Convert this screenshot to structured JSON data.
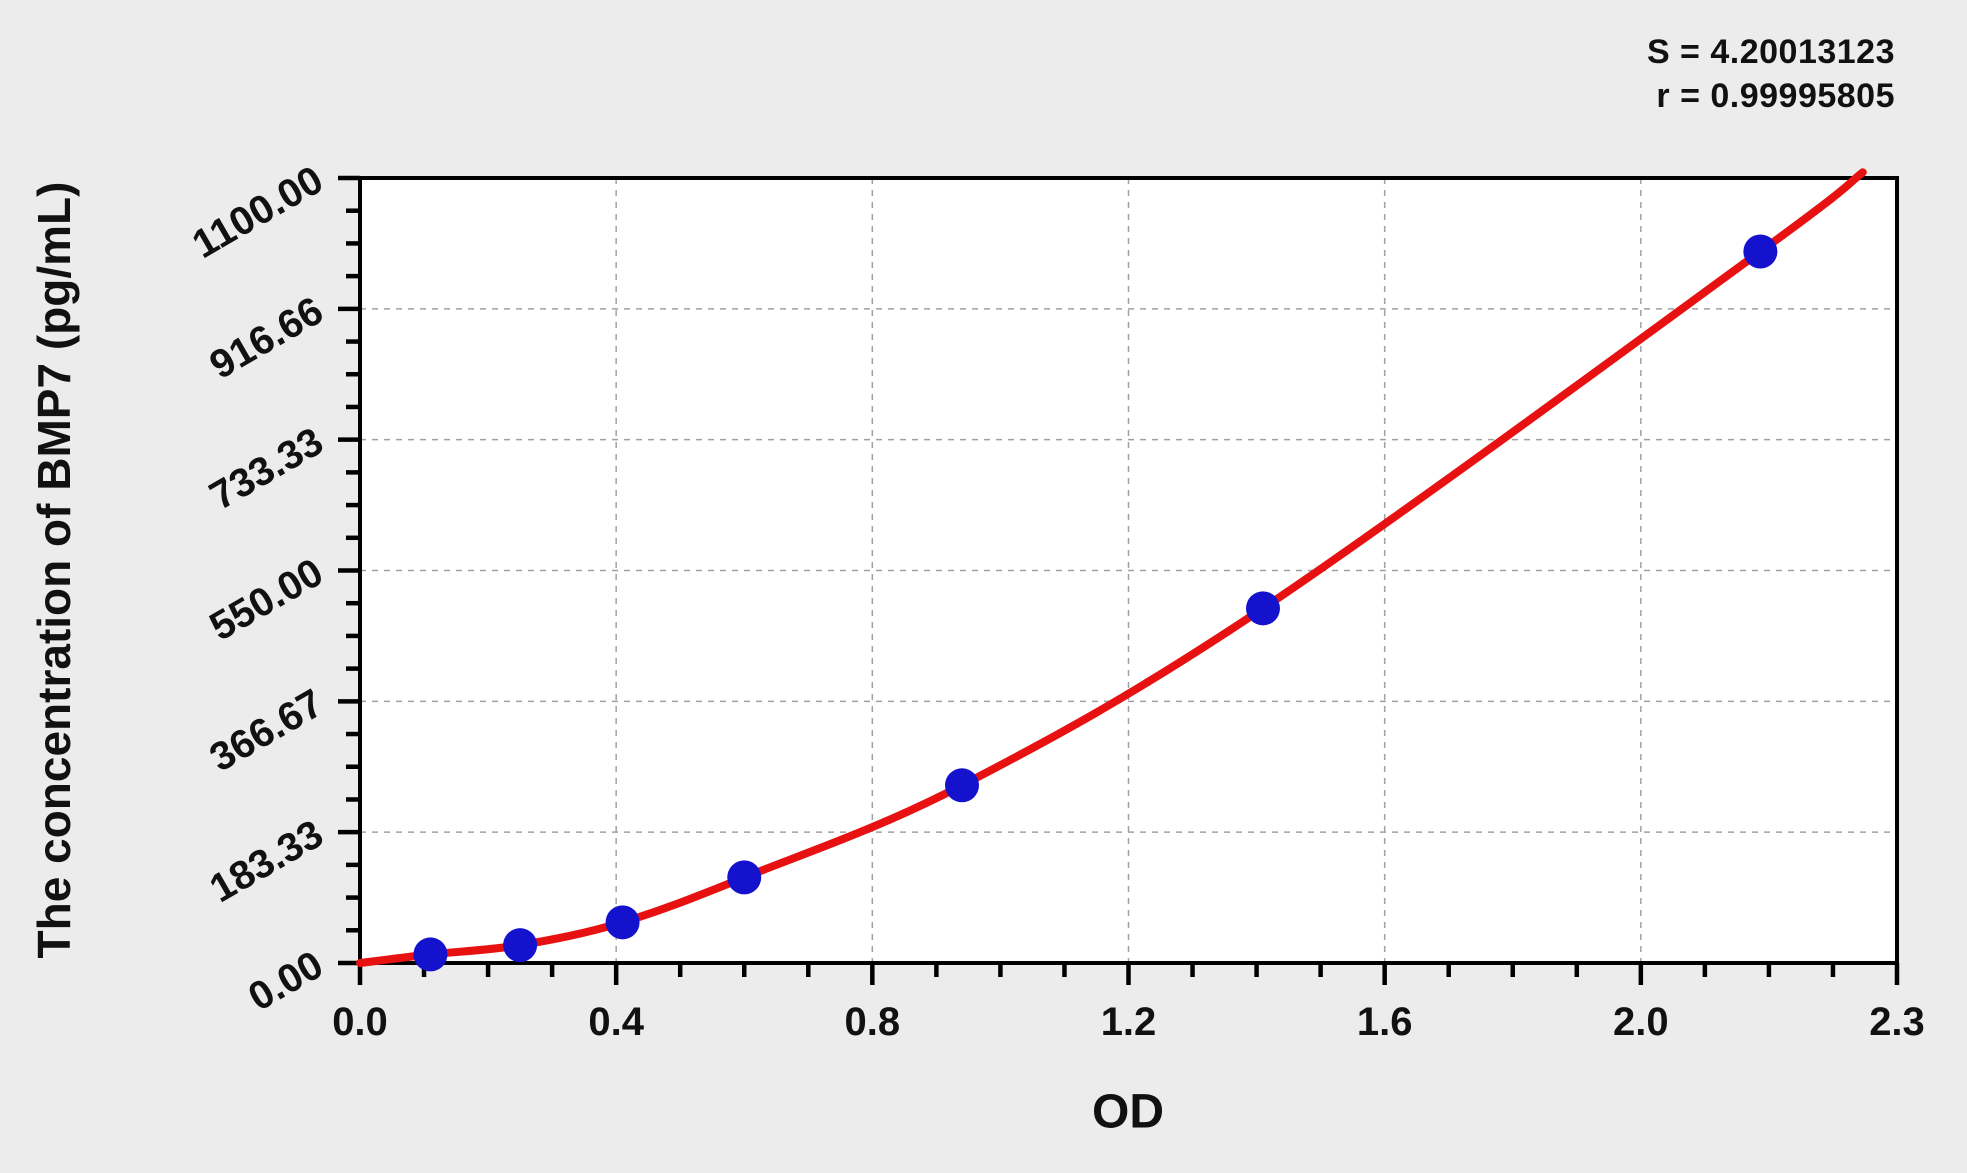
{
  "stats": {
    "s_text": "S = 4.20013123",
    "r_text": "r = 0.99995805"
  },
  "chart_data": {
    "type": "scatter",
    "title": "",
    "xlabel": "OD",
    "ylabel": "The concentration of BMP7 (pg/mL)",
    "legend": "none",
    "grid": "dashed gray lines at major ticks, plot area white, page background light gray",
    "fit": {
      "S": 4.20013123,
      "r": 0.99995805,
      "note": "red fitted standard curve through blue data points"
    },
    "x_axis": {
      "label": "OD",
      "tick_values": [
        0.0,
        0.4,
        0.8,
        1.2,
        1.6,
        2.0,
        2.3
      ],
      "tick_labels": [
        "0.0",
        "0.4",
        "0.8",
        "1.2",
        "1.6",
        "2.0",
        "2.3"
      ],
      "minor_ticks_per_interval": 3,
      "note": "major ticks evenly spaced; last interval spans 2.0 to 2.3"
    },
    "y_axis": {
      "label": "The concentration of BMP7 (pg/mL)",
      "tick_values": [
        0,
        183.33,
        366.67,
        550.0,
        733.33,
        916.66,
        1100.0
      ],
      "tick_labels": [
        "0.00",
        "183.33",
        "366.67",
        "550.00",
        "733.33",
        "916.66",
        "1100.00"
      ],
      "minor_ticks_per_interval": 3,
      "ylim": [
        0,
        1100
      ]
    },
    "points": [
      {
        "od": 0.11,
        "conc": 12
      },
      {
        "od": 0.25,
        "conc": 25
      },
      {
        "od": 0.41,
        "conc": 57
      },
      {
        "od": 0.6,
        "conc": 120
      },
      {
        "od": 0.94,
        "conc": 249
      },
      {
        "od": 1.41,
        "conc": 497
      },
      {
        "od": 2.14,
        "conc": 997
      }
    ],
    "curve": {
      "start": {
        "od": 0.0,
        "conc": 0
      },
      "end": {
        "od": 2.26,
        "conc": 1108
      }
    }
  },
  "colors": {
    "curve": "#e81111",
    "points": "#1512cd",
    "frame": "#000000",
    "grid": "#a0a0a0",
    "background": "#ececec",
    "plot_background": "#ffffff",
    "text": "#111111"
  }
}
